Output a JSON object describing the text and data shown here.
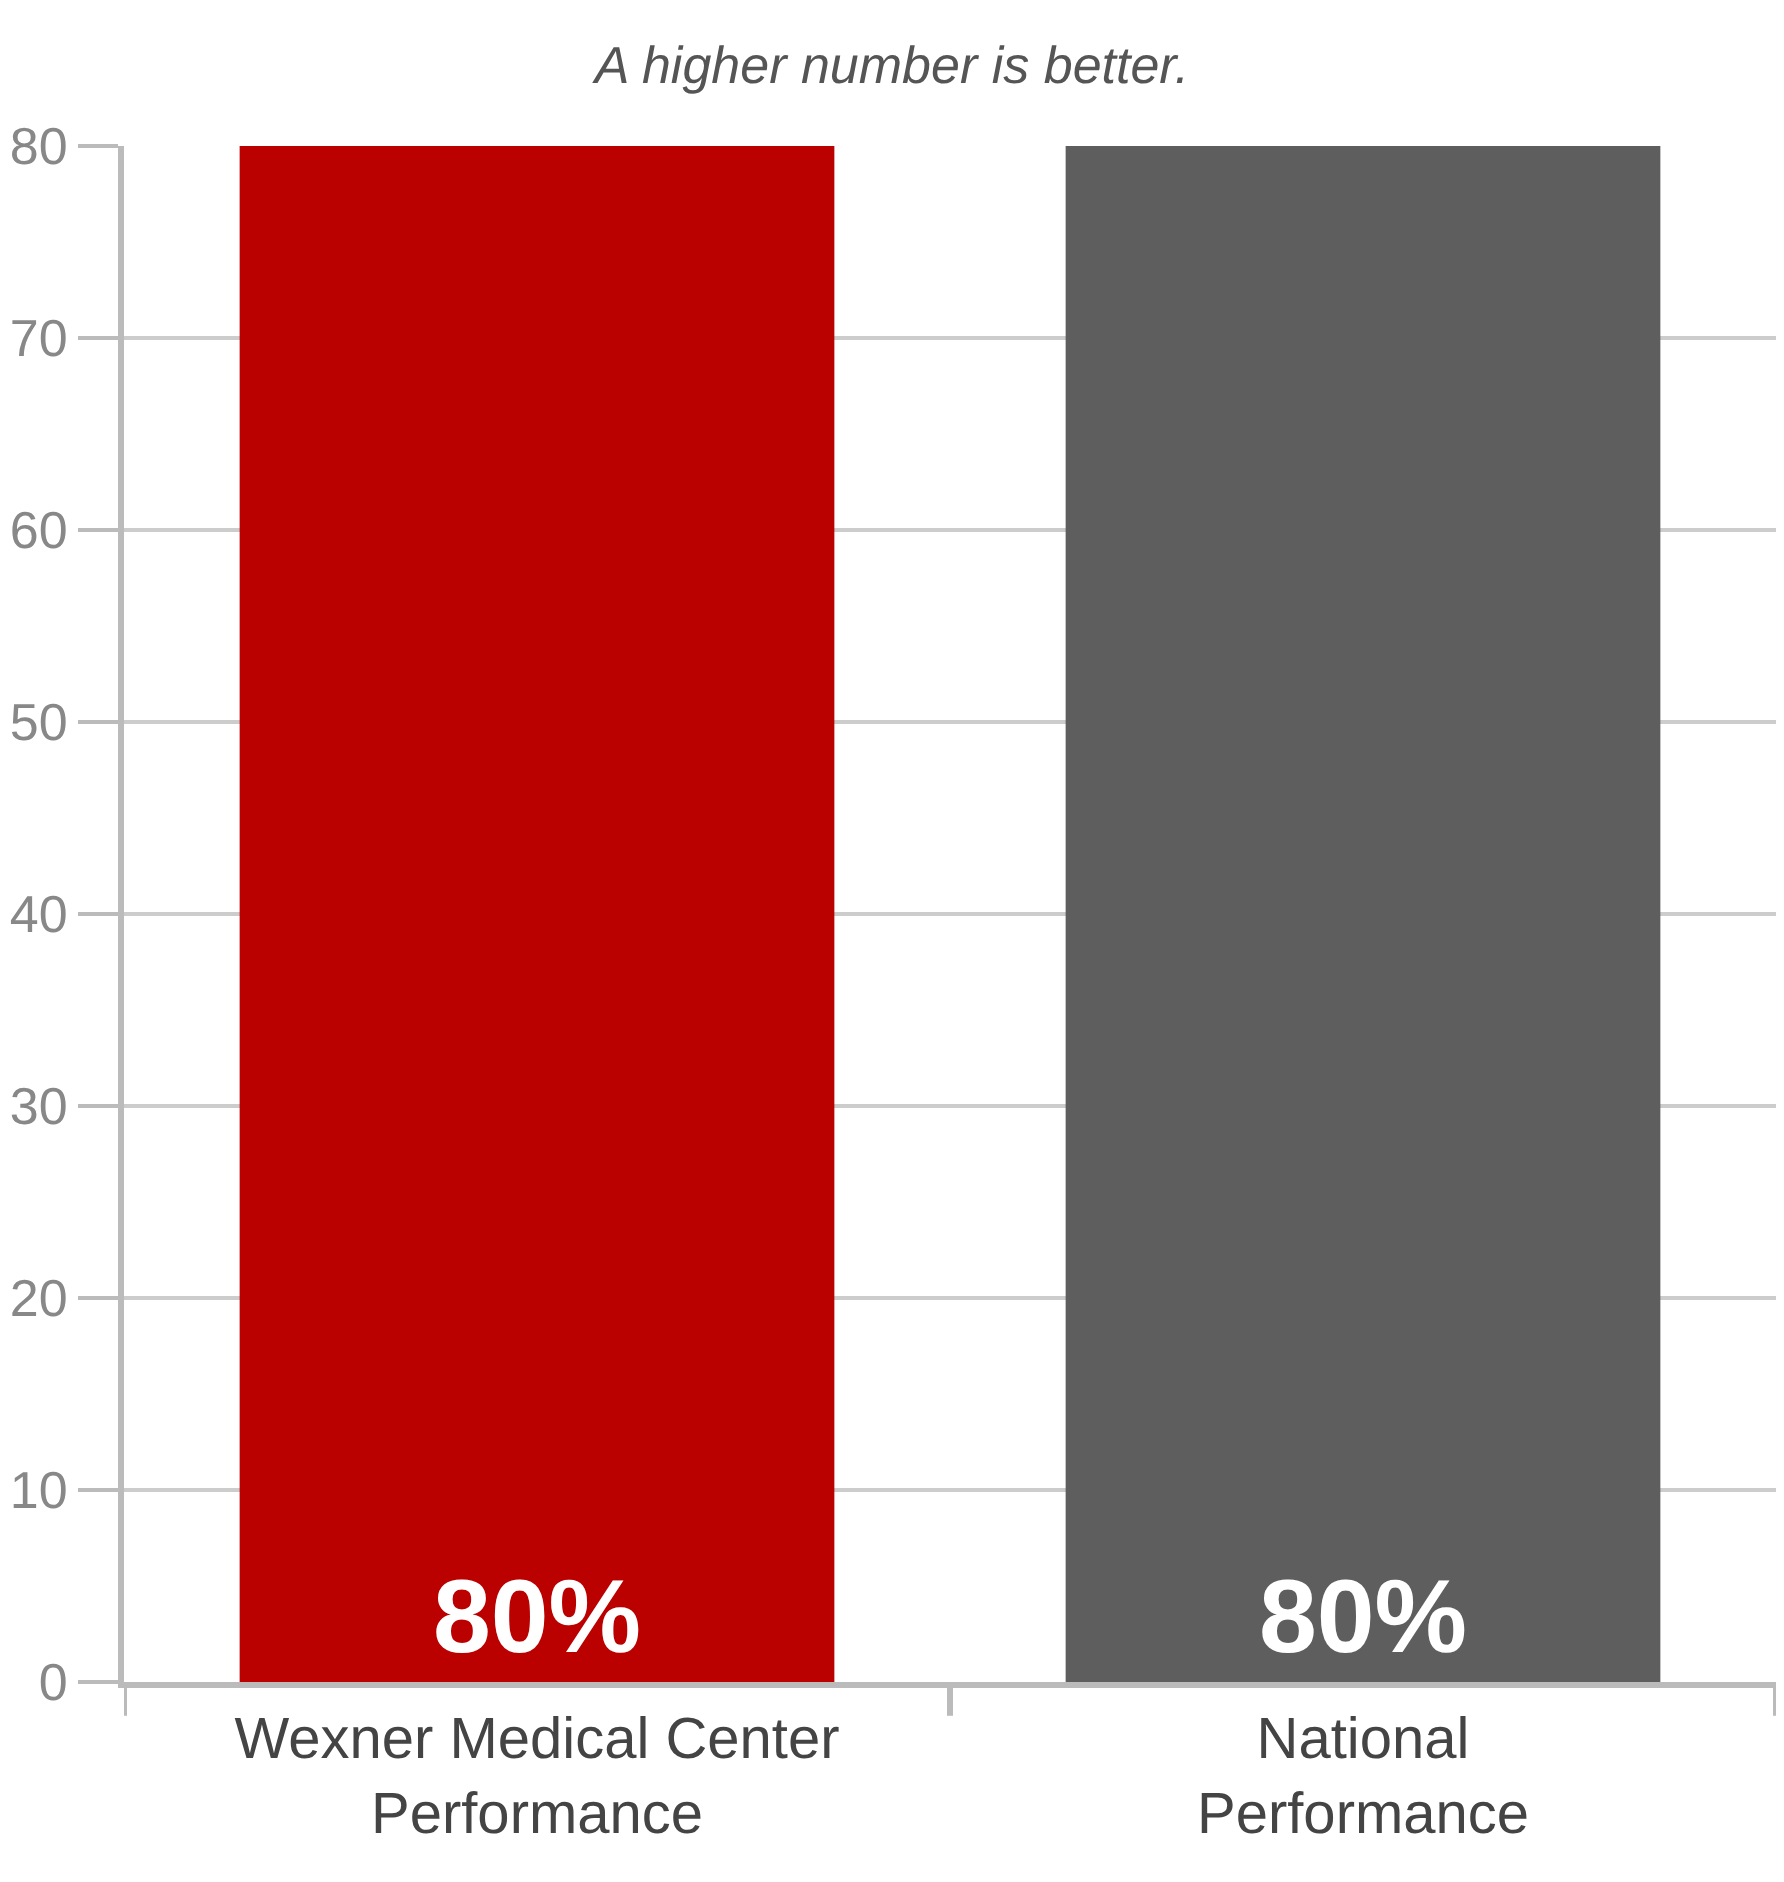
{
  "chart_data": {
    "type": "bar",
    "title": "A higher number is better.",
    "categories": [
      "Wexner Medical Center\nPerformance",
      "National\nPerformance"
    ],
    "values": [
      80,
      80
    ],
    "colors": [
      "#bb0000",
      "#5e5e5e"
    ],
    "value_labels": [
      "80%",
      "80%"
    ],
    "ylim": [
      0,
      80
    ],
    "yticks": [
      0,
      10,
      20,
      30,
      40,
      50,
      60,
      70,
      80
    ],
    "grid": "y"
  }
}
